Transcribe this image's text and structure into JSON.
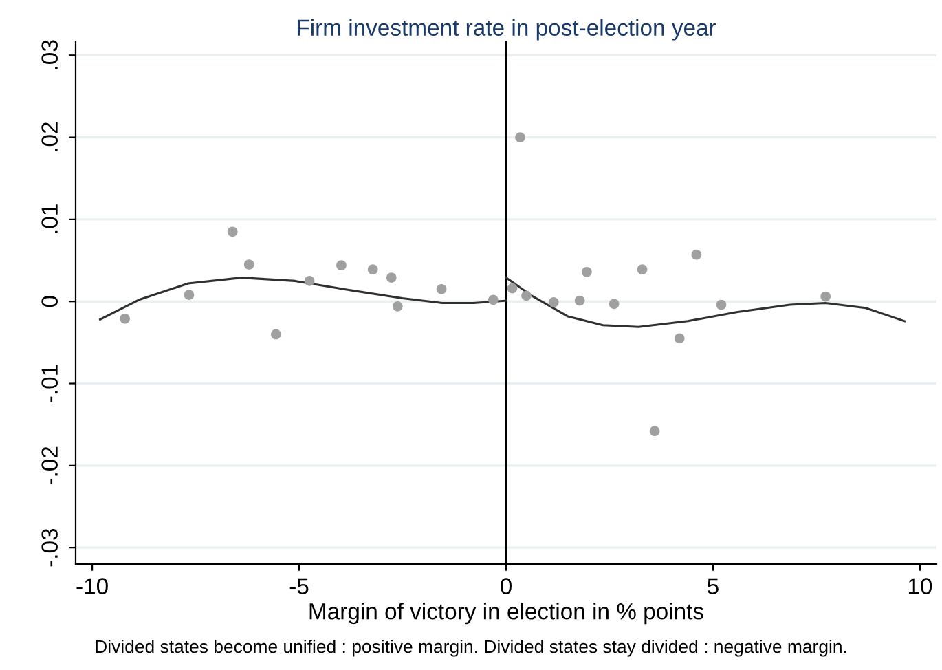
{
  "chart_data": {
    "type": "scatter",
    "title": "Firm investment rate in post-election year",
    "xlabel": "Margin of victory in election in % points",
    "annotations": [
      "Divided states become unified : positive margin. Divided states stay divided : negative margin."
    ],
    "series": [
      {
        "color": "#a0a0a0",
        "marker": "circle",
        "x": [
          -9.21,
          -7.66,
          -6.61,
          -6.21,
          -5.56,
          -4.75,
          -3.98,
          -3.22,
          -2.77,
          -2.62,
          -1.56,
          -0.31,
          0.15,
          0.34,
          0.49,
          1.15,
          1.78,
          1.95,
          2.61,
          3.29,
          3.59,
          4.19,
          4.6,
          5.2,
          7.72
        ],
        "values": [
          -0.0021,
          0.0008,
          0.0085,
          0.0045,
          -0.004,
          0.0025,
          0.0044,
          0.0039,
          0.0029,
          -0.0006,
          0.0015,
          0.0002,
          0.0016,
          0.02,
          0.0007,
          -0.0001,
          0.0001,
          0.0036,
          -0.0003,
          0.0039,
          -0.0158,
          -0.0045,
          0.0057,
          -0.0004,
          0.0006
        ]
      },
      {
        "type": "line",
        "color": "#303030",
        "marker": "none",
        "line_style": "solid",
        "x": [
          -9.81,
          -8.87,
          -7.68,
          -6.39,
          -5.1,
          -3.8,
          -2.51,
          -1.54,
          -0.79,
          0
        ],
        "values": [
          -0.0022,
          0.0002,
          0.0022,
          0.0029,
          0.0025,
          0.0014,
          0.0004,
          -0.0002,
          -0.0002,
          0.0001
        ]
      },
      {
        "type": "line",
        "color": "#303030",
        "marker": "none",
        "line_style": "solid",
        "x": [
          0,
          0.62,
          1.48,
          2.34,
          3.2,
          4.39,
          5.57,
          6.86,
          7.72,
          8.69,
          9.63
        ],
        "values": [
          0.0029,
          0.0007,
          -0.0018,
          -0.0029,
          -0.0031,
          -0.0024,
          -0.0013,
          -0.0004,
          -0.0002,
          -0.0008,
          -0.0024
        ]
      }
    ],
    "xlim": [
      -10.4,
      10.4
    ],
    "xticks": [
      -10,
      -5,
      0,
      5,
      10
    ],
    "ylim": [
      -0.032,
      0.0317
    ],
    "yticks": [
      {
        "value": -0.03,
        "label": "-.03"
      },
      {
        "value": -0.02,
        "label": "-.02"
      },
      {
        "value": -0.01,
        "label": "-.01"
      },
      {
        "value": 0,
        "label": "0"
      },
      {
        "value": 0.01,
        "label": ".01"
      },
      {
        "value": 0.02,
        "label": ".02"
      },
      {
        "value": 0.03,
        "label": ".03"
      }
    ],
    "grid": "y",
    "legend": false,
    "ref_lines": [
      {
        "axis": "x",
        "value": 0,
        "color": "#000000",
        "line_style": "solid"
      }
    ]
  }
}
